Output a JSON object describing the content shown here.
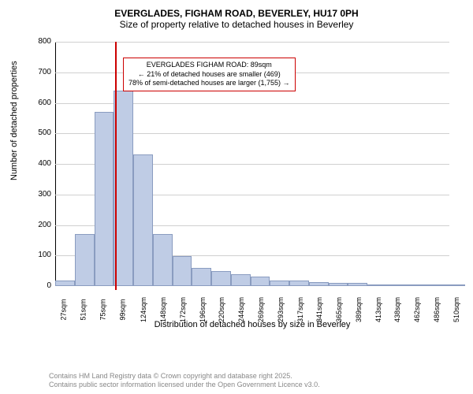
{
  "title": {
    "main": "EVERGLADES, FIGHAM ROAD, BEVERLEY, HU17 0PH",
    "sub": "Size of property relative to detached houses in Beverley"
  },
  "chart": {
    "type": "histogram",
    "ylabel": "Number of detached properties",
    "xlabel": "Distribution of detached houses by size in Beverley",
    "ylim": [
      0,
      800
    ],
    "ytick_step": 100,
    "bar_fill": "#bfcce5",
    "bar_border": "#8a9cc0",
    "grid_color": "#d0d0d0",
    "marker_color": "#cc0000",
    "background_color": "#ffffff",
    "title_fontsize": 12,
    "label_fontsize": 11,
    "tick_fontsize": 10,
    "categories": [
      "27sqm",
      "51sqm",
      "75sqm",
      "99sqm",
      "124sqm",
      "148sqm",
      "172sqm",
      "196sqm",
      "220sqm",
      "244sqm",
      "269sqm",
      "293sqm",
      "317sqm",
      "341sqm",
      "365sqm",
      "389sqm",
      "413sqm",
      "438sqm",
      "462sqm",
      "486sqm",
      "510sqm"
    ],
    "values": [
      18,
      170,
      570,
      640,
      430,
      170,
      98,
      60,
      50,
      40,
      30,
      18,
      18,
      12,
      10,
      10,
      5,
      4,
      0,
      3,
      5
    ],
    "marker_position_sqm": 89,
    "annotation": {
      "line1": "EVERGLADES FIGHAM ROAD: 89sqm",
      "line2": "← 21% of detached houses are smaller (469)",
      "line3": "78% of semi-detached houses are larger (1,755) →"
    }
  },
  "footer": {
    "line1": "Contains HM Land Registry data © Crown copyright and database right 2025.",
    "line2": "Contains public sector information licensed under the Open Government Licence v3.0."
  }
}
